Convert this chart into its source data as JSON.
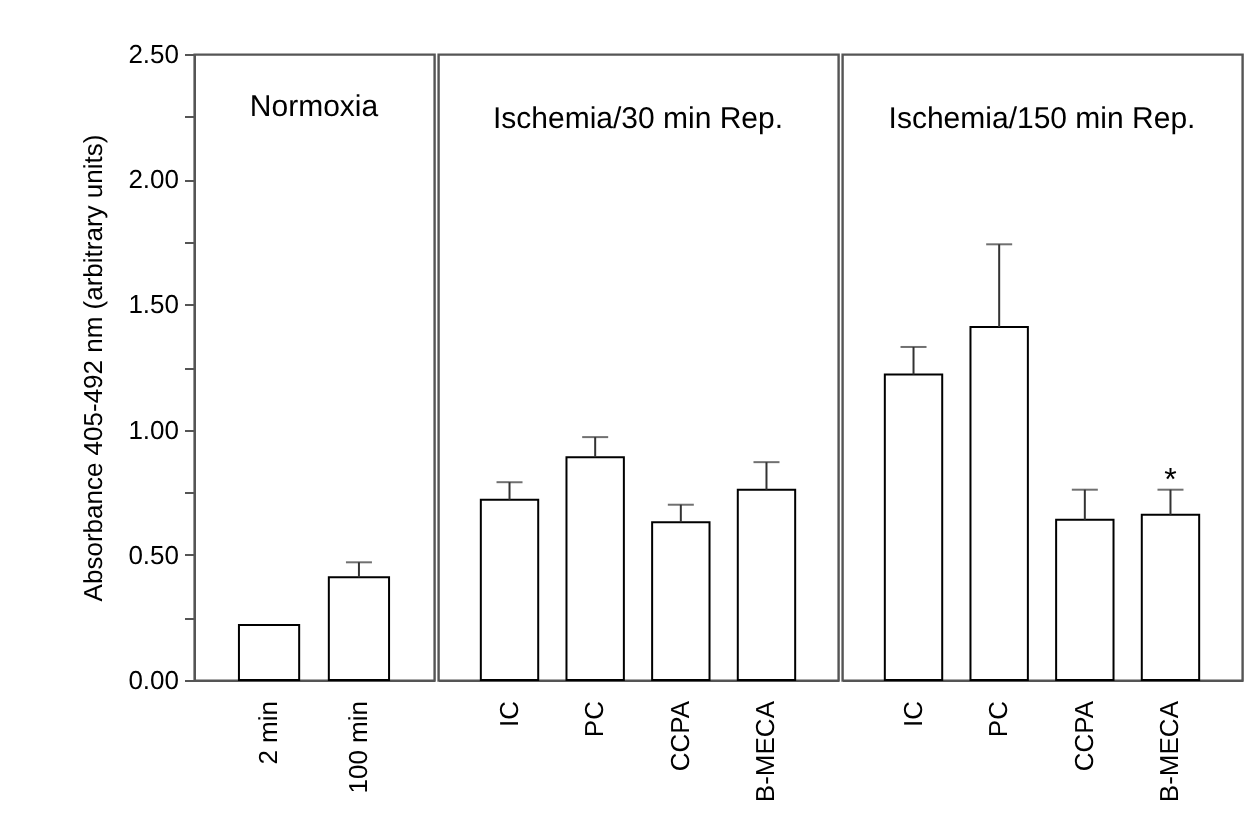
{
  "chart_data": [
    {
      "type": "bar",
      "title": "Normoxia",
      "ylabel": "Absorbance 405-492 nm (arbitrary units)",
      "categories": [
        "2 min",
        "100 min"
      ],
      "values": [
        0.22,
        0.41
      ],
      "errors": [
        null,
        [
          0.41,
          0.47
        ]
      ],
      "color": "#ffffff",
      "ylim": [
        0,
        2.5
      ],
      "yticks": [
        {
          "value": 0,
          "label": "0.00"
        },
        {
          "value": 0.25,
          "label": null
        },
        {
          "value": 0.5,
          "label": "0.50"
        },
        {
          "value": 0.75,
          "label": null
        },
        {
          "value": 1,
          "label": "1.00"
        },
        {
          "value": 1.25,
          "label": null
        },
        {
          "value": 1.5,
          "label": "1.50"
        },
        {
          "value": 1.75,
          "label": null
        },
        {
          "value": 2,
          "label": "2.00"
        },
        {
          "value": 2.25,
          "label": null
        },
        {
          "value": 2.5,
          "label": "2.50"
        }
      ]
    },
    {
      "type": "bar",
      "title": "Ischemia/30 min Rep.",
      "categories": [
        "IC",
        "PC",
        "CCPA",
        "B-MECA"
      ],
      "values": [
        0.72,
        0.89,
        0.63,
        0.76
      ],
      "errors": [
        [
          0.72,
          0.79
        ],
        [
          0.89,
          0.97
        ],
        [
          0.63,
          0.7
        ],
        [
          0.76,
          0.87
        ]
      ],
      "color": "#ffffff",
      "ylim": [
        0,
        2.5
      ],
      "tick_labels": "x"
    },
    {
      "type": "bar",
      "title": "Ischemia/150 min Rep.",
      "categories": [
        "IC",
        "PC",
        "CCPA",
        "B-MECA"
      ],
      "values": [
        1.22,
        1.41,
        0.64,
        0.66
      ],
      "errors": [
        [
          1.22,
          1.33
        ],
        [
          1.41,
          1.74
        ],
        [
          0.64,
          0.76
        ],
        [
          0.66,
          0.76
        ]
      ],
      "color": "#ffffff",
      "ylim": [
        0,
        2.5
      ],
      "tick_labels": "x",
      "annotations": [
        {
          "text": "*",
          "x": "B-MECA",
          "y": 0.8
        }
      ]
    }
  ]
}
